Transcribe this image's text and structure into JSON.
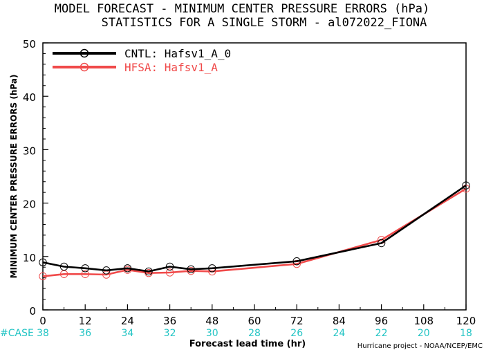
{
  "chart_data": {
    "type": "line",
    "title": "MODEL FORECAST - MINIMUM CENTER PRESSURE ERRORS (hPa)",
    "subtitle": "STATISTICS FOR A SINGLE STORM - al072022_FIONA",
    "xlabel": "Forecast lead time (hr)",
    "ylabel": "MINIMUM CENTER PRESSURE ERRORS (hPa)",
    "xlim": [
      0,
      120
    ],
    "ylim": [
      0,
      50
    ],
    "x_ticks": [
      "0",
      "12",
      "24",
      "36",
      "48",
      "60",
      "72",
      "84",
      "96",
      "108",
      "120"
    ],
    "y_ticks": [
      "0",
      "10",
      "20",
      "30",
      "40",
      "50"
    ],
    "grid": false,
    "legend_position": "top-left",
    "case_label": "#CASE",
    "case_counts": [
      "38",
      "36",
      "34",
      "32",
      "30",
      "28",
      "26",
      "24",
      "22",
      "20",
      "18"
    ],
    "credit": "Hurricane project - NOAA/NCEP/EMC",
    "series": [
      {
        "name": "CNTL: Hafsv1_A_0",
        "color": "#000000",
        "x": [
          0,
          6,
          12,
          18,
          24,
          30,
          36,
          42,
          48,
          72,
          96,
          120
        ],
        "y": [
          8.9,
          8.1,
          7.8,
          7.4,
          7.8,
          7.2,
          8.1,
          7.6,
          7.8,
          9.1,
          12.5,
          23.3
        ],
        "marker_x": [
          0,
          6,
          12,
          18,
          24,
          30,
          36,
          42,
          48,
          72,
          96,
          120
        ],
        "line_x": [
          0,
          6,
          12,
          18,
          24,
          30,
          36,
          42,
          48,
          72,
          96,
          120
        ]
      },
      {
        "name": "HFSA: Hafsv1_A",
        "color": "#f04a4a",
        "x": [
          0,
          6,
          12,
          18,
          24,
          30,
          36,
          42,
          48,
          72,
          96,
          120
        ],
        "y": [
          6.3,
          6.7,
          6.7,
          6.6,
          7.5,
          6.9,
          7.0,
          7.3,
          7.2,
          8.6,
          13.1,
          22.7
        ]
      }
    ]
  }
}
